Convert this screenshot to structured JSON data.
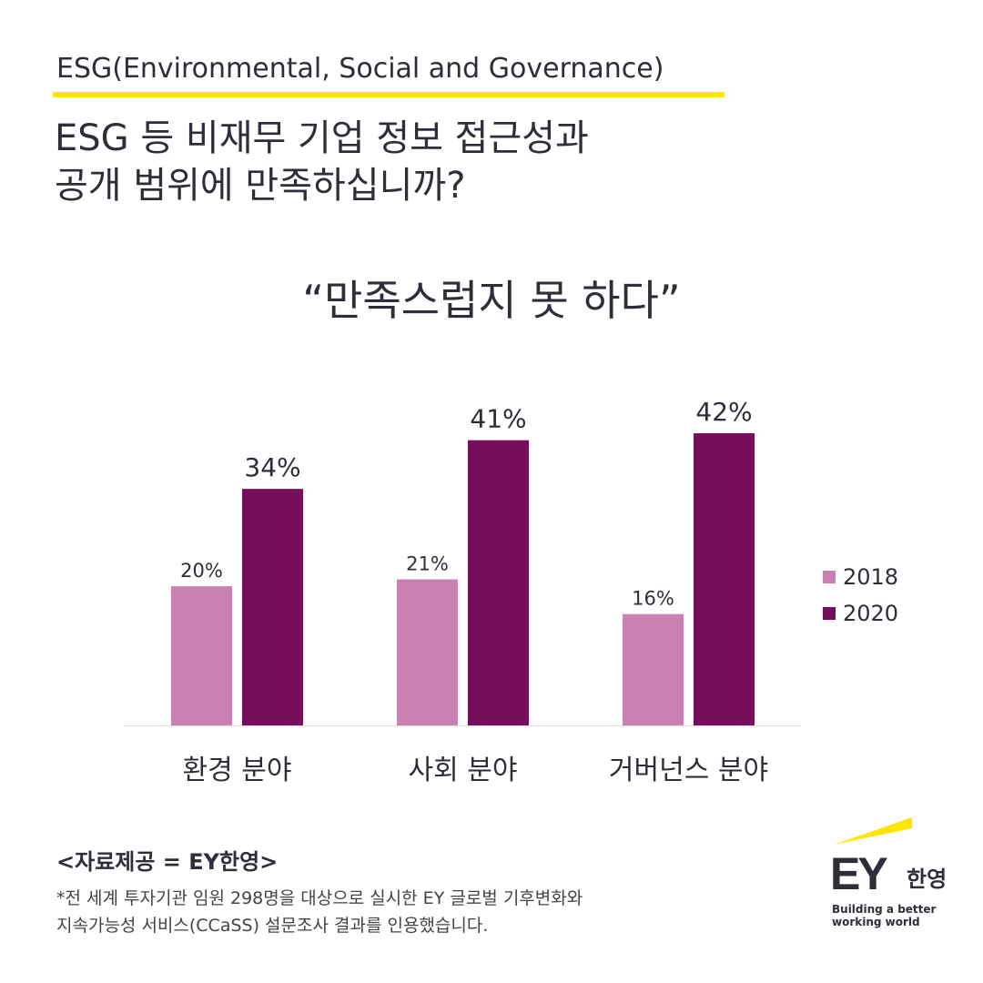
{
  "header": {
    "kicker": "ESG(Environmental, Social and Governance)",
    "title_line1": "ESG 등 비재무 기업 정보 접근성과",
    "title_line2": "공개 범위에 만족하십니까?"
  },
  "chart_data": {
    "type": "bar",
    "title": "“만족스럽지 못 하다”",
    "categories": [
      "환경 분야",
      "사회 분야",
      "거버넌스 분야"
    ],
    "series": [
      {
        "name": "2018",
        "values": [
          20,
          21,
          16
        ],
        "labels": [
          "20%",
          "21%",
          "16%"
        ],
        "color": "#c881b1"
      },
      {
        "name": "2020",
        "values": [
          34,
          41,
          42
        ],
        "labels": [
          "34%",
          "41%",
          "42%"
        ],
        "color": "#750f5b"
      }
    ],
    "ylim": [
      0,
      42
    ],
    "legend": "right",
    "grid": false
  },
  "footer": {
    "source": "<자료제공 = EY한영>",
    "note_line1": "*전 세계 투자기관 임원 298명을 대상으로 실시한 EY 글로벌 기후변화와",
    "note_line2": "지속가능성 서비스(CCaSS) 설문조사 결과를 인용했습니다."
  },
  "logo": {
    "brand": "EY",
    "brand_kr": "한영",
    "tagline_line1": "Building a better",
    "tagline_line2": "working world",
    "accent": "#ffe600"
  }
}
